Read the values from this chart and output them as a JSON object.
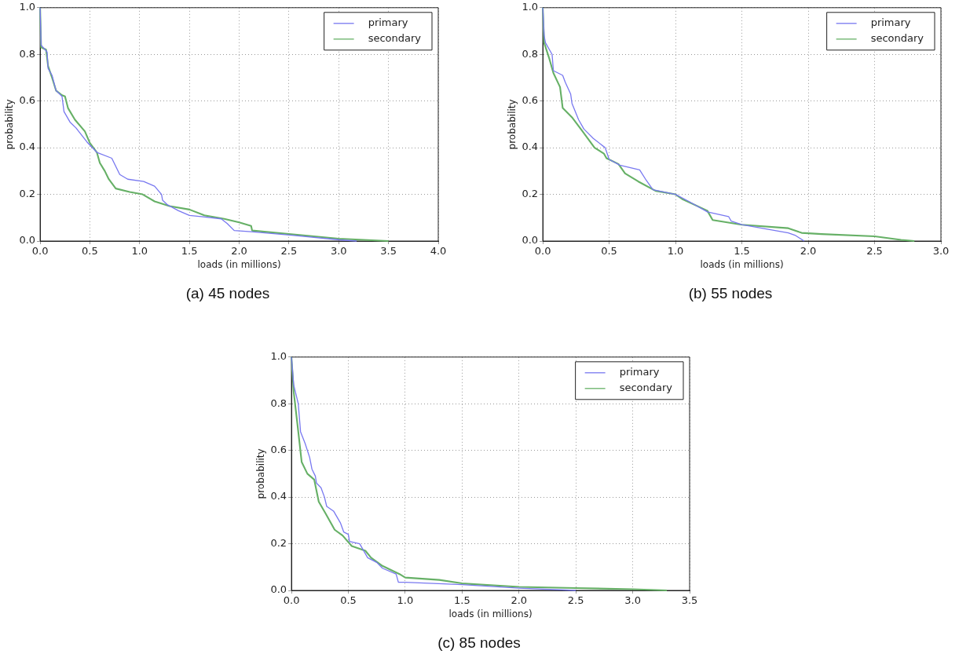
{
  "chart_data": [
    {
      "type": "line",
      "title": "(a)  45 nodes",
      "xlabel": "loads (in millions)",
      "ylabel": "probability",
      "legend": "top right",
      "grid": true,
      "marker": "none",
      "line_style": "solid",
      "xlim": [
        0,
        4
      ],
      "ylim": [
        0,
        1
      ],
      "xticks": [
        {
          "value": 0,
          "label": "0.0"
        },
        {
          "value": 0.5,
          "label": "0.5"
        },
        {
          "value": 1,
          "label": "1.0"
        },
        {
          "value": 1.5,
          "label": "1.5"
        },
        {
          "value": 2,
          "label": "2.0"
        },
        {
          "value": 2.5,
          "label": "2.5"
        },
        {
          "value": 3,
          "label": "3.0"
        },
        {
          "value": 3.5,
          "label": "3.5"
        },
        {
          "value": 4,
          "label": "4.0"
        }
      ],
      "yticks": [
        {
          "value": 0,
          "label": "0.0"
        },
        {
          "value": 0.2,
          "label": "0.2"
        },
        {
          "value": 0.4,
          "label": "0.4"
        },
        {
          "value": 0.6,
          "label": "0.6"
        },
        {
          "value": 0.8,
          "label": "0.8"
        },
        {
          "value": 1,
          "label": "1.0"
        }
      ],
      "series": [
        {
          "name": "primary",
          "color": "#7878f0",
          "x": [
            0,
            0.01,
            0.07,
            0.08,
            0.12,
            0.16,
            0.22,
            0.24,
            0.3,
            0.36,
            0.47,
            0.57,
            0.72,
            0.8,
            0.88,
            1.04,
            1.15,
            1.22,
            1.23,
            1.28,
            1.39,
            1.5,
            1.82,
            1.88,
            1.95,
            2.12,
            2.53,
            3.01,
            3.18
          ],
          "values": [
            1,
            0.84,
            0.81,
            0.74,
            0.71,
            0.645,
            0.62,
            0.555,
            0.51,
            0.485,
            0.425,
            0.38,
            0.355,
            0.285,
            0.265,
            0.255,
            0.235,
            0.2,
            0.175,
            0.155,
            0.13,
            0.11,
            0.095,
            0.075,
            0.045,
            0.04,
            0.025,
            0.005,
            0
          ]
        },
        {
          "name": "secondary",
          "color": "#66b066",
          "x": [
            0,
            0.01,
            0.06,
            0.08,
            0.12,
            0.16,
            0.22,
            0.25,
            0.28,
            0.35,
            0.45,
            0.5,
            0.57,
            0.6,
            0.65,
            0.69,
            0.76,
            0.9,
            1.03,
            1.15,
            1.3,
            1.5,
            1.65,
            1.85,
            2,
            2.12,
            2.13,
            2.5,
            3,
            3.5
          ],
          "values": [
            1,
            0.83,
            0.82,
            0.75,
            0.7,
            0.645,
            0.625,
            0.62,
            0.57,
            0.52,
            0.47,
            0.42,
            0.38,
            0.335,
            0.3,
            0.265,
            0.225,
            0.21,
            0.2,
            0.17,
            0.15,
            0.135,
            0.11,
            0.095,
            0.08,
            0.065,
            0.045,
            0.03,
            0.01,
            0
          ]
        }
      ]
    },
    {
      "type": "line",
      "title": "(b)  55 nodes",
      "xlabel": "loads (in millions)",
      "ylabel": "probability",
      "legend": "top right",
      "grid": true,
      "marker": "none",
      "line_style": "solid",
      "xlim": [
        0,
        3
      ],
      "ylim": [
        0,
        1
      ],
      "xticks": [
        {
          "value": 0,
          "label": "0.0"
        },
        {
          "value": 0.5,
          "label": "0.5"
        },
        {
          "value": 1,
          "label": "1.0"
        },
        {
          "value": 1.5,
          "label": "1.5"
        },
        {
          "value": 2,
          "label": "2.0"
        },
        {
          "value": 2.5,
          "label": "2.5"
        },
        {
          "value": 3,
          "label": "3.0"
        }
      ],
      "yticks": [
        {
          "value": 0,
          "label": "0.0"
        },
        {
          "value": 0.2,
          "label": "0.2"
        },
        {
          "value": 0.4,
          "label": "0.4"
        },
        {
          "value": 0.6,
          "label": "0.6"
        },
        {
          "value": 0.8,
          "label": "0.8"
        },
        {
          "value": 1,
          "label": "1.0"
        }
      ],
      "series": [
        {
          "name": "primary",
          "color": "#7878f0",
          "x": [
            0,
            0.01,
            0.02,
            0.03,
            0.07,
            0.08,
            0.15,
            0.17,
            0.21,
            0.22,
            0.27,
            0.31,
            0.38,
            0.47,
            0.5,
            0.58,
            0.73,
            0.78,
            0.83,
            1,
            1.1,
            1.24,
            1.4,
            1.42,
            1.5,
            1.7,
            1.85,
            1.9,
            1.97
          ],
          "values": [
            1,
            0.88,
            0.85,
            0.84,
            0.8,
            0.73,
            0.71,
            0.68,
            0.63,
            0.59,
            0.52,
            0.48,
            0.44,
            0.4,
            0.35,
            0.325,
            0.305,
            0.26,
            0.22,
            0.2,
            0.17,
            0.125,
            0.105,
            0.085,
            0.07,
            0.05,
            0.035,
            0.025,
            0
          ]
        },
        {
          "name": "secondary",
          "color": "#66b066",
          "x": [
            0,
            0.01,
            0.05,
            0.08,
            0.13,
            0.15,
            0.22,
            0.3,
            0.39,
            0.46,
            0.48,
            0.57,
            0.62,
            0.72,
            0.85,
            1,
            1.05,
            1.24,
            1.28,
            1.5,
            1.85,
            1.95,
            2.1,
            2.5,
            2.7,
            2.8
          ],
          "values": [
            1,
            0.85,
            0.78,
            0.72,
            0.66,
            0.57,
            0.53,
            0.47,
            0.4,
            0.375,
            0.355,
            0.33,
            0.29,
            0.255,
            0.215,
            0.2,
            0.18,
            0.13,
            0.09,
            0.07,
            0.055,
            0.035,
            0.03,
            0.02,
            0.005,
            0
          ]
        }
      ]
    },
    {
      "type": "line",
      "title": "(c)  85 nodes",
      "xlabel": "loads (in millions)",
      "ylabel": "probability",
      "legend": "top right",
      "grid": true,
      "marker": "none",
      "line_style": "solid",
      "xlim": [
        0,
        3.5
      ],
      "ylim": [
        0,
        1
      ],
      "xticks": [
        {
          "value": 0,
          "label": "0.0"
        },
        {
          "value": 0.5,
          "label": "0.5"
        },
        {
          "value": 1,
          "label": "1.0"
        },
        {
          "value": 1.5,
          "label": "1.5"
        },
        {
          "value": 2,
          "label": "2.0"
        },
        {
          "value": 2.5,
          "label": "2.5"
        },
        {
          "value": 3,
          "label": "3.0"
        },
        {
          "value": 3.5,
          "label": "3.5"
        }
      ],
      "yticks": [
        {
          "value": 0,
          "label": "0.0"
        },
        {
          "value": 0.2,
          "label": "0.2"
        },
        {
          "value": 0.4,
          "label": "0.4"
        },
        {
          "value": 0.6,
          "label": "0.6"
        },
        {
          "value": 0.8,
          "label": "0.8"
        },
        {
          "value": 1,
          "label": "1.0"
        }
      ],
      "series": [
        {
          "name": "primary",
          "color": "#7878f0",
          "x": [
            0,
            0.02,
            0.06,
            0.08,
            0.12,
            0.16,
            0.18,
            0.21,
            0.22,
            0.26,
            0.29,
            0.31,
            0.37,
            0.43,
            0.46,
            0.5,
            0.51,
            0.6,
            0.67,
            0.75,
            0.8,
            0.92,
            0.94,
            1,
            1.5,
            2,
            2.5
          ],
          "values": [
            1,
            0.88,
            0.8,
            0.68,
            0.63,
            0.57,
            0.52,
            0.49,
            0.46,
            0.44,
            0.4,
            0.36,
            0.34,
            0.29,
            0.25,
            0.24,
            0.21,
            0.2,
            0.14,
            0.12,
            0.095,
            0.07,
            0.035,
            0.035,
            0.025,
            0.01,
            0
          ]
        },
        {
          "name": "secondary",
          "color": "#66b066",
          "x": [
            0,
            0.02,
            0.06,
            0.09,
            0.14,
            0.2,
            0.24,
            0.3,
            0.38,
            0.45,
            0.53,
            0.65,
            0.7,
            0.8,
            0.95,
            1,
            1.3,
            1.5,
            2,
            2.5,
            3,
            3.3
          ],
          "values": [
            1,
            0.85,
            0.68,
            0.55,
            0.5,
            0.475,
            0.38,
            0.33,
            0.26,
            0.235,
            0.19,
            0.17,
            0.14,
            0.105,
            0.07,
            0.055,
            0.045,
            0.03,
            0.015,
            0.01,
            0.005,
            0
          ]
        }
      ]
    }
  ]
}
